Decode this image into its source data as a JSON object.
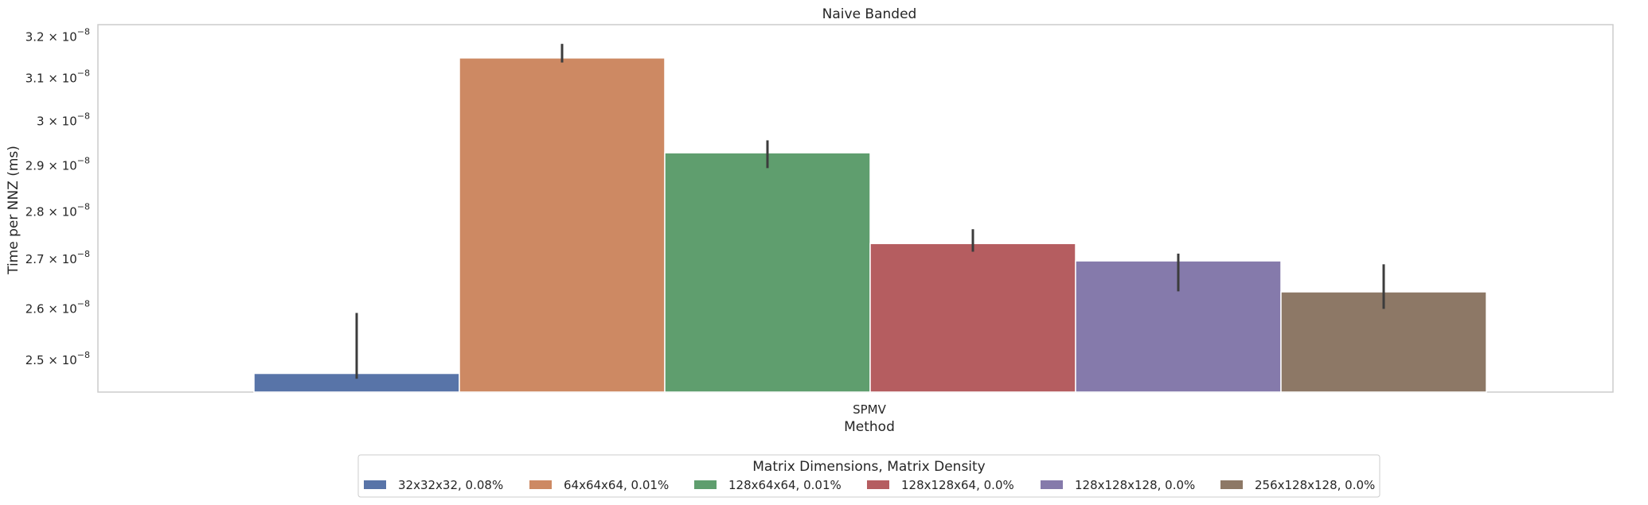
{
  "chart_data": {
    "type": "bar",
    "title": "Naive Banded",
    "xlabel": "Method",
    "ylabel": "Time per NNZ (ms)",
    "categories": [
      "SPMV"
    ],
    "y_scale": "log",
    "ylim": [
      2.44e-08,
      3.23e-08
    ],
    "yticks": [
      {
        "value": 2.5e-08,
        "mantissa": "2.5",
        "exponent": "−8"
      },
      {
        "value": 2.6e-08,
        "mantissa": "2.6",
        "exponent": "−8"
      },
      {
        "value": 2.7e-08,
        "mantissa": "2.7",
        "exponent": "−8"
      },
      {
        "value": 2.8e-08,
        "mantissa": "2.8",
        "exponent": "−8"
      },
      {
        "value": 2.9e-08,
        "mantissa": "2.9",
        "exponent": "−8"
      },
      {
        "value": 3e-08,
        "mantissa": "3",
        "exponent": "−8"
      },
      {
        "value": 3.1e-08,
        "mantissa": "3.1",
        "exponent": "−8"
      },
      {
        "value": 3.2e-08,
        "mantissa": "3.2",
        "exponent": "−8"
      }
    ],
    "grid": false,
    "legend": {
      "title": "Matrix Dimensions, Matrix Density",
      "placement": "below",
      "columns": 6
    },
    "series": [
      {
        "name": "32x32x32, 0.08%",
        "color": "#5874a8",
        "values": [
          2.475e-08
        ],
        "error": [
          [
            2.465e-08,
            2.592e-08
          ]
        ]
      },
      {
        "name": "64x64x64, 0.01%",
        "color": "#cd8963",
        "values": [
          3.149e-08
        ],
        "error": [
          [
            3.138e-08,
            3.183e-08
          ]
        ]
      },
      {
        "name": "128x64x64, 0.01%",
        "color": "#5f9e6e",
        "values": [
          2.929e-08
        ],
        "error": [
          [
            2.895e-08,
            2.957e-08
          ]
        ]
      },
      {
        "name": "128x128x64, 0.0%",
        "color": "#b55d60",
        "values": [
          2.733e-08
        ],
        "error": [
          [
            2.716e-08,
            2.763e-08
          ]
        ]
      },
      {
        "name": "128x128x128, 0.0%",
        "color": "#857aab",
        "values": [
          2.697e-08
        ],
        "error": [
          [
            2.635e-08,
            2.712e-08
          ]
        ]
      },
      {
        "name": "256x128x128, 0.0%",
        "color": "#8d7866",
        "values": [
          2.634e-08
        ],
        "error": [
          [
            2.6e-08,
            2.69e-08
          ]
        ]
      }
    ]
  }
}
